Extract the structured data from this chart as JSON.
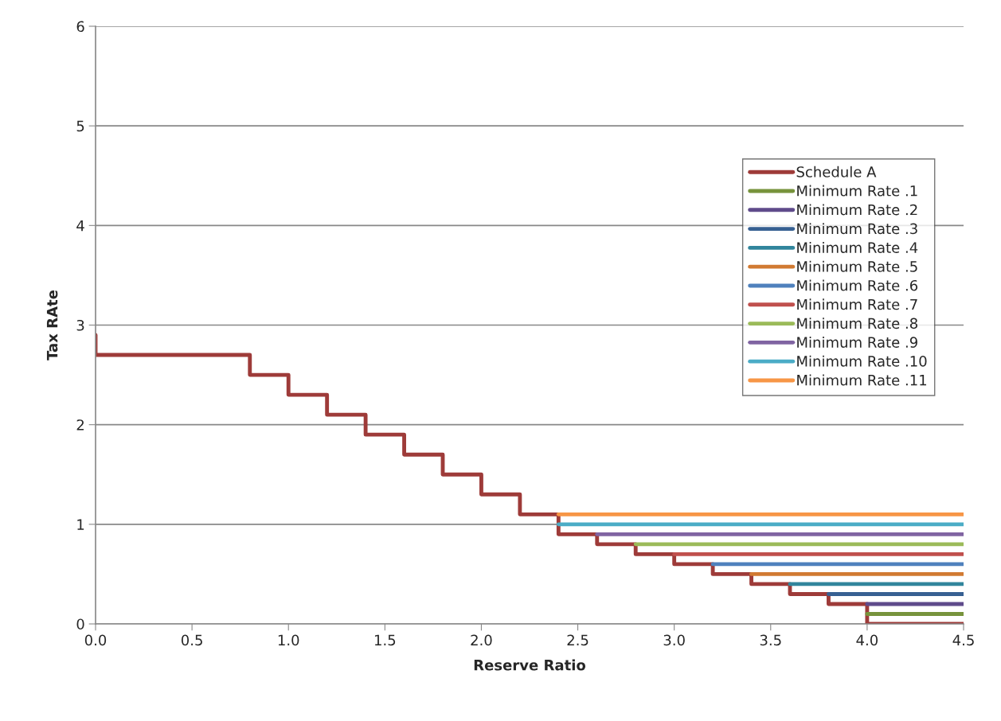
{
  "chart_data": {
    "type": "line",
    "xlabel": "Reserve Ratio",
    "ylabel": "Tax RAte",
    "xlim": [
      0,
      4.5
    ],
    "xticks": [
      {
        "value": 0,
        "label": "0.0"
      },
      {
        "value": 0.5,
        "label": "0.5"
      },
      {
        "value": 1,
        "label": "1.0"
      },
      {
        "value": 1.5,
        "label": "1.5"
      },
      {
        "value": 2,
        "label": "2.0"
      },
      {
        "value": 2.5,
        "label": "2.5"
      },
      {
        "value": 3,
        "label": "3.0"
      },
      {
        "value": 3.5,
        "label": "3.5"
      },
      {
        "value": 4,
        "label": "4.0"
      },
      {
        "value": 4.5,
        "label": "4.5"
      }
    ],
    "ylim": [
      0,
      6
    ],
    "yticks": [
      0,
      1,
      2,
      3,
      4,
      5,
      6
    ],
    "grid": "y",
    "legend": "right",
    "marker": "none",
    "line_style": "solid",
    "series": [
      {
        "name": "Schedule A",
        "color": "#9e3b39",
        "x": [
          0,
          0,
          0.8,
          0.8,
          1.0,
          1.0,
          1.2,
          1.2,
          1.4,
          1.4,
          1.6,
          1.6,
          1.8,
          1.8,
          2.0,
          2.0,
          2.2,
          2.2,
          2.4,
          2.4,
          2.6,
          2.6,
          2.8,
          2.8,
          3.0,
          3.0,
          3.2,
          3.2,
          3.4,
          3.4,
          3.6,
          3.6,
          3.8,
          3.8,
          4.0,
          4.0,
          4.5
        ],
        "values": [
          2.9,
          2.7,
          2.7,
          2.5,
          2.5,
          2.3,
          2.3,
          2.1,
          2.1,
          1.9,
          1.9,
          1.7,
          1.7,
          1.5,
          1.5,
          1.3,
          1.3,
          1.1,
          1.1,
          0.9,
          0.9,
          0.8,
          0.8,
          0.7,
          0.7,
          0.6,
          0.6,
          0.5,
          0.5,
          0.4,
          0.4,
          0.3,
          0.3,
          0.2,
          0.2,
          0,
          0
        ]
      },
      {
        "name": "Minimum Rate .1",
        "color": "#77933c",
        "x": [
          4.0,
          4.5
        ],
        "values": [
          0.1,
          0.1
        ]
      },
      {
        "name": "Minimum Rate .2",
        "color": "#5f4b8b",
        "x": [
          4.0,
          4.5
        ],
        "values": [
          0.2,
          0.2
        ]
      },
      {
        "name": "Minimum Rate .3",
        "color": "#376092",
        "x": [
          3.8,
          4.5
        ],
        "values": [
          0.3,
          0.3
        ]
      },
      {
        "name": "Minimum Rate .4",
        "color": "#31859c",
        "x": [
          3.6,
          4.5
        ],
        "values": [
          0.4,
          0.4
        ]
      },
      {
        "name": "Minimum Rate .5",
        "color": "#d17a32",
        "x": [
          3.4,
          4.5
        ],
        "values": [
          0.5,
          0.5
        ]
      },
      {
        "name": "Minimum Rate .6",
        "color": "#4f81bd",
        "x": [
          3.2,
          4.5
        ],
        "values": [
          0.6,
          0.6
        ]
      },
      {
        "name": "Minimum Rate .7",
        "color": "#c0504d",
        "x": [
          3.0,
          4.5
        ],
        "values": [
          0.7,
          0.7
        ]
      },
      {
        "name": "Minimum Rate .8",
        "color": "#9bbb59",
        "x": [
          2.8,
          4.5
        ],
        "values": [
          0.8,
          0.8
        ]
      },
      {
        "name": "Minimum Rate .9",
        "color": "#8064a2",
        "x": [
          2.6,
          4.5
        ],
        "values": [
          0.9,
          0.9
        ]
      },
      {
        "name": "Minimum Rate .10",
        "color": "#4bacc6",
        "x": [
          2.4,
          4.5
        ],
        "values": [
          1.0,
          1.0
        ]
      },
      {
        "name": "Minimum Rate .11",
        "color": "#f79646",
        "x": [
          2.4,
          4.5
        ],
        "values": [
          1.1,
          1.1
        ]
      }
    ]
  }
}
